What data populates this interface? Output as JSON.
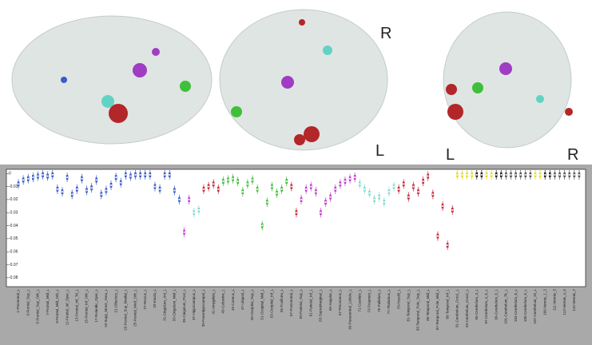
{
  "brain_labels": [
    "R",
    "L",
    "L",
    "R"
  ],
  "chart_data": {
    "type": "box",
    "categories": [
      "1-Precentral_L",
      null,
      "3-Frontal_Sup_L",
      null,
      "5-Frontal_Sup_Orb_L",
      null,
      "7-Frontal_Mid_L",
      null,
      "9-Frontal_Mid_Orb_L",
      null,
      "11-Frontal_Inf_Oper_L",
      null,
      "13-Frontal_Inf_Tri_L",
      null,
      "15-Frontal_Inf_Orb_L",
      null,
      "17-Rolandic_Oper_L",
      null,
      "19-Supp_Motor_Area_L",
      null,
      "21-Olfactory_L",
      null,
      "23-Frontal_Sup_Medial_L",
      null,
      "25-Frontal_Med_Orb_L",
      null,
      "27-Rectus_L",
      null,
      "29-Insula_L",
      null,
      "31-Cingulum_Ant_L",
      null,
      "33-Cingulum_Mid_L",
      null,
      "35-Cingulum_Post_L",
      null,
      "37-Hippocampus_L",
      null,
      "39-ParaHippocampal_L",
      null,
      "41-Amygdala_L",
      null,
      "43-Calcarine_L",
      null,
      "45-Cuneus_L",
      null,
      "47-Lingual_L",
      null,
      "49-Occipital_Sup_L",
      null,
      "51-Occipital_Mid_L",
      null,
      "53-Occipital_Inf_L",
      null,
      "55-Fusiform_L",
      null,
      "57-Postcentral_L",
      null,
      "59-Parietal_Sup_L",
      null,
      "61-Parietal_Inf_L",
      null,
      "63-SupraMarginal_L",
      null,
      "65-Angular_L",
      null,
      "67-Precuneus_L",
      null,
      "69-Paracentral_Lobule_L",
      null,
      "71-Caudate_L",
      null,
      "73-Putamen_L",
      null,
      "75-Pallidum_L",
      null,
      "77-Thalamus_L",
      null,
      "79-Heschl_L",
      null,
      "81-Temporal_Sup_L",
      null,
      "83-Temporal_Pole_Sup_L",
      null,
      "85-Temporal_Mid_L",
      null,
      "87-Temporal_Pole_Mid_L",
      null,
      "89-Temporal_Inf_L",
      null,
      "91-Cerebelum_Crus1_L",
      null,
      "93-Cerebelum_Crus2_L",
      null,
      "95-Cerebelum_3_L",
      null,
      "97-Cerebelum_4_5_L",
      null,
      "99-Cerebelum_6_L",
      null,
      "101-Cerebelum_7b_L",
      null,
      "103-Cerebelum_8_L",
      null,
      "105-Cerebelum_9_L",
      null,
      "107-Cerebelum_10_L",
      null,
      "109-Vermis_1_2",
      null,
      "111-Vermis_3",
      null,
      "113-Vermis_4_5",
      null,
      "115-Vermis_7",
      null
    ],
    "values": [
      -0.008,
      -0.005,
      -0.004,
      -0.003,
      -0.002,
      -0.001,
      -0.002,
      -0.001,
      -0.012,
      -0.014,
      -0.003,
      -0.016,
      -0.012,
      -0.004,
      -0.013,
      -0.011,
      -0.005,
      -0.016,
      -0.013,
      -0.009,
      -0.003,
      -0.007,
      -0.001,
      -0.002,
      -0.001,
      -0.001,
      -0.001,
      -0.001,
      -0.01,
      -0.012,
      -0.001,
      -0.001,
      -0.013,
      -0.02,
      -0.045,
      -0.02,
      -0.03,
      -0.028,
      -0.012,
      -0.01,
      -0.008,
      -0.012,
      -0.006,
      -0.005,
      -0.004,
      -0.006,
      -0.014,
      -0.008,
      -0.005,
      -0.012,
      -0.04,
      -0.022,
      -0.01,
      -0.015,
      -0.012,
      -0.006,
      -0.01,
      -0.03,
      -0.02,
      -0.012,
      -0.01,
      -0.014,
      -0.03,
      -0.022,
      -0.018,
      -0.012,
      -0.008,
      -0.006,
      -0.004,
      -0.003,
      -0.008,
      -0.012,
      -0.015,
      -0.02,
      -0.018,
      -0.022,
      -0.014,
      -0.01,
      -0.012,
      -0.008,
      -0.018,
      -0.01,
      -0.014,
      -0.006,
      -0.002,
      -0.016,
      -0.048,
      -0.025,
      -0.055,
      -0.028,
      -0.001,
      -0.001,
      -0.001,
      -0.001,
      -0.001,
      -0.001,
      -0.001,
      -0.001,
      -0.001,
      -0.001,
      -0.001,
      -0.001,
      -0.001,
      -0.001,
      -0.001,
      -0.001,
      -0.001,
      -0.001,
      -0.001,
      -0.001,
      -0.001,
      -0.001,
      -0.001,
      -0.001,
      -0.001,
      -0.001
    ],
    "colors": [
      "#3a5bc7",
      "#3a5bc7",
      "#3a5bc7",
      "#3a5bc7",
      "#3a5bc7",
      "#3a5bc7",
      "#3a5bc7",
      "#3a5bc7",
      "#3a5bc7",
      "#3a5bc7",
      "#3a5bc7",
      "#3a5bc7",
      "#3a5bc7",
      "#3a5bc7",
      "#3a5bc7",
      "#3a5bc7",
      "#3a5bc7",
      "#3a5bc7",
      "#3a5bc7",
      "#3a5bc7",
      "#3a5bc7",
      "#3a5bc7",
      "#3a5bc7",
      "#3a5bc7",
      "#3a5bc7",
      "#3a5bc7",
      "#3a5bc7",
      "#3a5bc7",
      "#3a5bc7",
      "#3a5bc7",
      "#3a5bc7",
      "#3a5bc7",
      "#3a5bc7",
      "#3a5bc7",
      "#c23ccf",
      "#c23ccf",
      "#7fdccf",
      "#7fdccf",
      "#c8263a",
      "#c8263a",
      "#c8263a",
      "#c8263a",
      "#3fbf3a",
      "#3fbf3a",
      "#3fbf3a",
      "#3fbf3a",
      "#3fbf3a",
      "#3fbf3a",
      "#3fbf3a",
      "#3fbf3a",
      "#3fbf3a",
      "#3fbf3a",
      "#3fbf3a",
      "#3fbf3a",
      "#3fbf3a",
      "#3fbf3a",
      "#c8263a",
      "#c8263a",
      "#c23ccf",
      "#c23ccf",
      "#c23ccf",
      "#c23ccf",
      "#c23ccf",
      "#c23ccf",
      "#c23ccf",
      "#c23ccf",
      "#c23ccf",
      "#c23ccf",
      "#c23ccf",
      "#c23ccf",
      "#7fdccf",
      "#7fdccf",
      "#7fdccf",
      "#7fdccf",
      "#7fdccf",
      "#7fdccf",
      "#7fdccf",
      "#7fdccf",
      "#c8263a",
      "#c8263a",
      "#c8263a",
      "#c8263a",
      "#c8263a",
      "#c8263a",
      "#c8263a",
      "#c8263a",
      "#c8263a",
      "#c8263a",
      "#c8263a",
      "#c8263a",
      "#e6d82a",
      "#e6d82a",
      "#e6d82a",
      "#e6d82a",
      "#222222",
      "#222222",
      "#e6d82a",
      "#e6d82a",
      "#222222",
      "#222222",
      "#555555",
      "#555555",
      "#555555",
      "#555555",
      "#555555",
      "#555555",
      "#e6d82a",
      "#e6d82a",
      "#222222",
      "#222222",
      "#555555",
      "#555555",
      "#555555",
      "#555555",
      "#555555",
      "#555555"
    ],
    "ylim": [
      -0.085,
      0.002
    ],
    "yticks": [
      0,
      -0.01,
      -0.02,
      -0.03,
      -0.04,
      -0.05,
      -0.06,
      -0.07,
      -0.08
    ]
  }
}
